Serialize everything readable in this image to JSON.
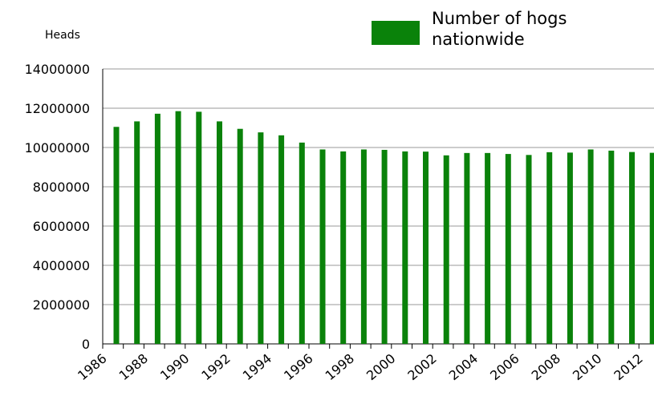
{
  "chart_data": {
    "type": "bar",
    "legend_title": "Number of hogs nationwide",
    "y_label": "Heads",
    "categories": [
      "1986",
      null,
      "1988",
      null,
      "1990",
      null,
      "1992",
      null,
      "1994",
      null,
      "1996",
      null,
      "1998",
      null,
      "2000",
      null,
      "2002",
      null,
      "2004",
      null,
      "2006",
      null,
      "2008",
      null,
      "2010",
      null,
      "2012"
    ],
    "series": [
      {
        "name": "Number of hogs nationwide",
        "color": "#0a820a",
        "values": [
          11050000,
          11330000,
          11720000,
          11850000,
          11820000,
          11330000,
          10950000,
          10770000,
          10620000,
          10250000,
          9900000,
          9800000,
          9900000,
          9880000,
          9800000,
          9790000,
          9600000,
          9720000,
          9720000,
          9670000,
          9620000,
          9760000,
          9740000,
          9900000,
          9840000,
          9770000,
          9730000
        ]
      }
    ],
    "ylim": [
      0,
      14000000
    ],
    "yticks": [
      0,
      2000000,
      4000000,
      6000000,
      8000000,
      10000000,
      12000000,
      14000000
    ],
    "grid": true
  }
}
